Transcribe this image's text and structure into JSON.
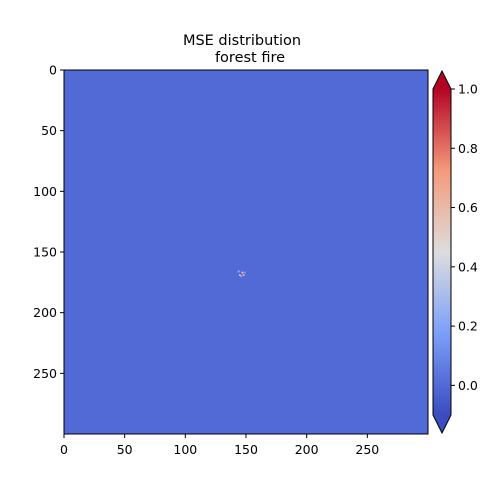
{
  "chart_data": {
    "type": "heatmap",
    "title_line1": "MSE distribution",
    "title_line2": "forest fire",
    "xlim": [
      0,
      300
    ],
    "ylim": [
      300,
      0
    ],
    "x_ticks": [
      0,
      50,
      100,
      150,
      200,
      250
    ],
    "y_ticks": [
      0,
      50,
      100,
      150,
      200,
      250
    ],
    "colormap": "coolwarm",
    "colorbar": {
      "vmin": -0.1,
      "vmax": 1.0,
      "ticks": [
        1.0,
        0.8,
        0.6,
        0.4,
        0.2,
        0.0
      ],
      "tick_labels": [
        "1.0",
        "0.8",
        "0.6",
        "0.4",
        "0.2",
        "0.0"
      ],
      "extend": "both"
    },
    "background_value": 0.0,
    "hotspots": [
      {
        "x": 146,
        "y": 168,
        "value": 0.95
      },
      {
        "x": 147,
        "y": 167,
        "value": 0.55
      },
      {
        "x": 145,
        "y": 169,
        "value": 0.35
      },
      {
        "x": 148,
        "y": 169,
        "value": 0.3
      },
      {
        "x": 144,
        "y": 166,
        "value": 0.25
      },
      {
        "x": 149,
        "y": 167,
        "value": 0.15
      },
      {
        "x": 146,
        "y": 170,
        "value": 0.2
      }
    ]
  }
}
